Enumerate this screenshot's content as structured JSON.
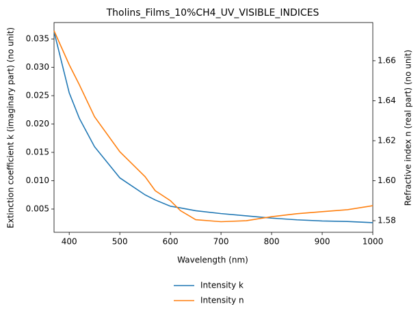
{
  "chart_data": {
    "type": "line",
    "title": "Tholins_Films_10%CH4_UV_VISIBLE_INDICES",
    "x_label": "Wavelength (nm)",
    "y_label": "Extinction coefficient k (imaginary part) (no unit)",
    "y2_label": "Refractive index n (real part) (no unit)",
    "x": [
      370,
      400,
      420,
      450,
      500,
      550,
      570,
      600,
      620,
      650,
      700,
      750,
      800,
      850,
      900,
      950,
      1000
    ],
    "series": [
      {
        "name": "Intensity k",
        "color": "#1f77b4",
        "values": [
          0.0363,
          0.0255,
          0.021,
          0.016,
          0.0105,
          0.0075,
          0.0066,
          0.0055,
          0.0052,
          0.0047,
          0.0042,
          0.0038,
          0.0034,
          0.0031,
          0.0029,
          0.0028,
          0.0026
        ]
      },
      {
        "name": "Intensity n",
        "color": "#ff7f0e",
        "axis": "y2",
        "values": [
          1.675,
          1.658,
          1.648,
          1.632,
          1.6145,
          1.602,
          1.595,
          1.59,
          1.585,
          1.5805,
          1.5795,
          1.58,
          1.582,
          1.5835,
          1.5845,
          1.5855,
          1.5875
        ]
      }
    ],
    "xlim": [
      370,
      1000
    ],
    "xticks": [
      400,
      500,
      600,
      700,
      800,
      900,
      1000
    ],
    "ylim": [
      0.0009,
      0.0379
    ],
    "yticks": [
      0.005,
      {
        "value": 0.01,
        "label": "0.010"
      },
      0.015,
      {
        "value": 0.02,
        "label": "0.020"
      },
      0.025,
      {
        "value": 0.03,
        "label": "0.030"
      },
      0.035
    ],
    "y2lim": [
      1.5742,
      1.6791
    ],
    "y2ticks": [
      1.58,
      {
        "value": 1.6,
        "label": "1.60"
      },
      1.62,
      1.64,
      1.66
    ],
    "legend": "bottom"
  }
}
